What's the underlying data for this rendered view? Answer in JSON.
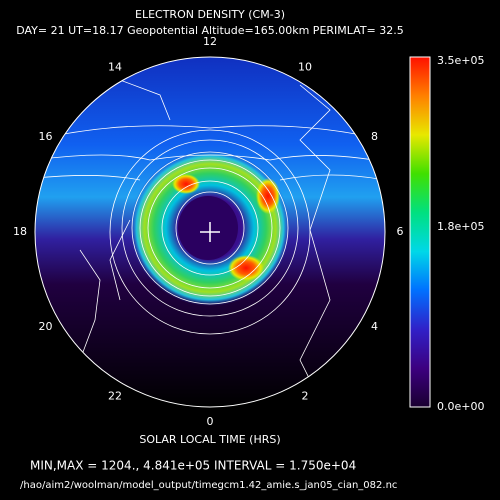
{
  "chart_data": {
    "type": "polar-contour",
    "title": "ELECTRON DENSITY (CM-3)",
    "subtitle": "DAY= 21 UT=18.17 Geopotential Altitude=165.00km PERIMLAT= 32.5",
    "hour_ticks": [
      12,
      14,
      16,
      18,
      20,
      22,
      0,
      2,
      4,
      6,
      8,
      10
    ],
    "xlabel": "SOLAR LOCAL TIME (HRS)",
    "colorbar": {
      "clim": [
        0,
        350000
      ],
      "ticks": [
        {
          "value": 350000,
          "label": "3.5e+05"
        },
        {
          "value": 180000,
          "label": "1.8e+05"
        },
        {
          "value": 0,
          "label": "0.0e+00"
        }
      ],
      "colors": [
        "#1a0030",
        "#3c0080",
        "#3020c8",
        "#0070ff",
        "#00d8e8",
        "#00e080",
        "#40e000",
        "#e8e800",
        "#ff8000",
        "#ff1000"
      ]
    },
    "minmax_text": "MIN,MAX =       1204., 4.841e+05 INTERVAL =  1.750e+04",
    "file_path": "/hao/aim2/woolman/model_output/timegcm1.42_amie.s_jan05_cian_082.nc"
  }
}
